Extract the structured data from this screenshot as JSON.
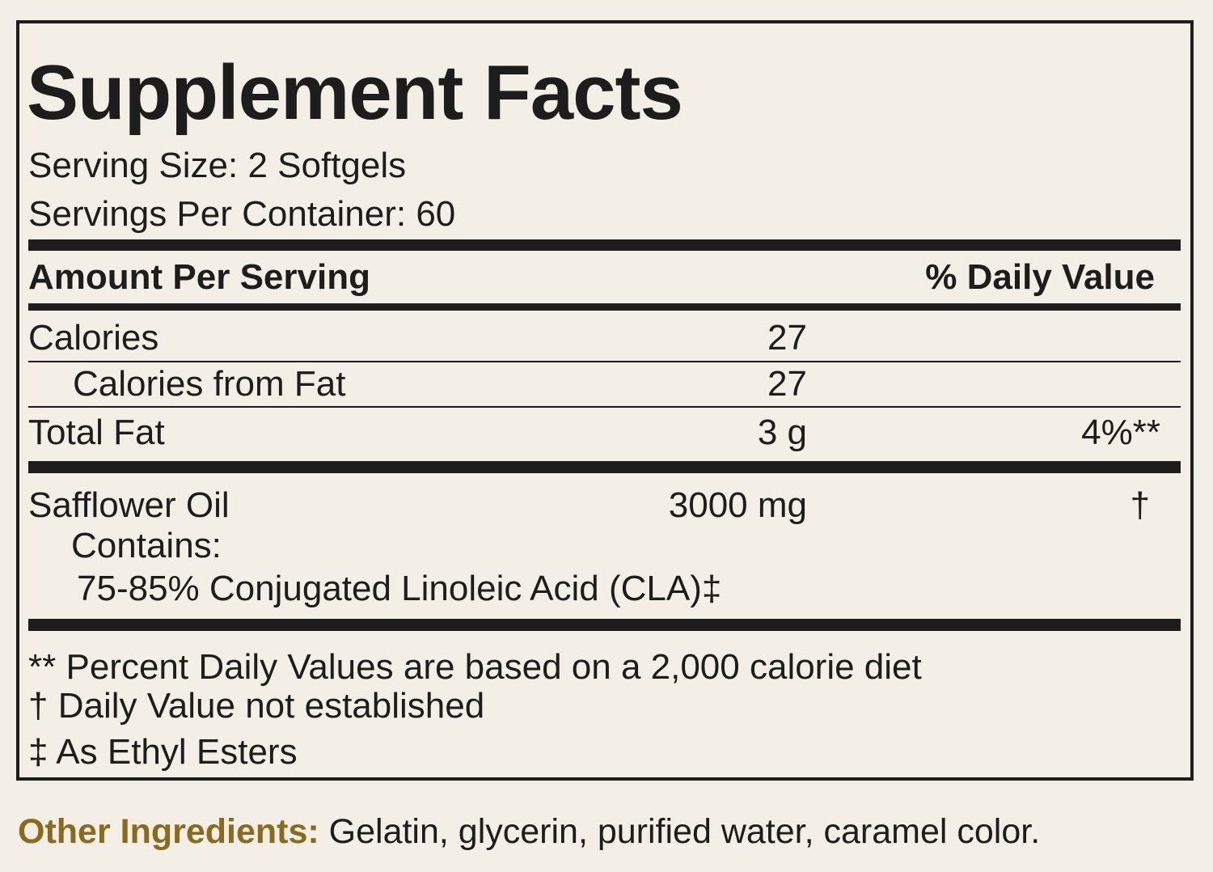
{
  "label": {
    "title": "Supplement Facts",
    "serving_size": "Serving Size: 2 Softgels",
    "servings_per_container": "Servings Per Container: 60",
    "header": {
      "amount": "Amount Per Serving",
      "daily_value": "% Daily Value"
    },
    "rows": [
      {
        "name": "Calories",
        "amount": "27"
      },
      {
        "name": "Calories from Fat",
        "amount": "27"
      },
      {
        "name": "Total Fat",
        "amount": "3 g",
        "daily_value": "4%**"
      },
      {
        "name": "Safflower Oil",
        "amount": "3000 mg",
        "daily_value": "†"
      }
    ],
    "contains": "Contains:",
    "contains_item": "75-85% Conjugated Linoleic Acid (CLA)‡",
    "footnotes": [
      "** Percent Daily Values are based on a 2,000 calorie diet",
      "†  Daily Value not established",
      "‡ As Ethyl Esters"
    ],
    "other_ingredients": {
      "label": "Other Ingredients:",
      "text": "Gelatin, glycerin, purified water, caramel color."
    }
  }
}
